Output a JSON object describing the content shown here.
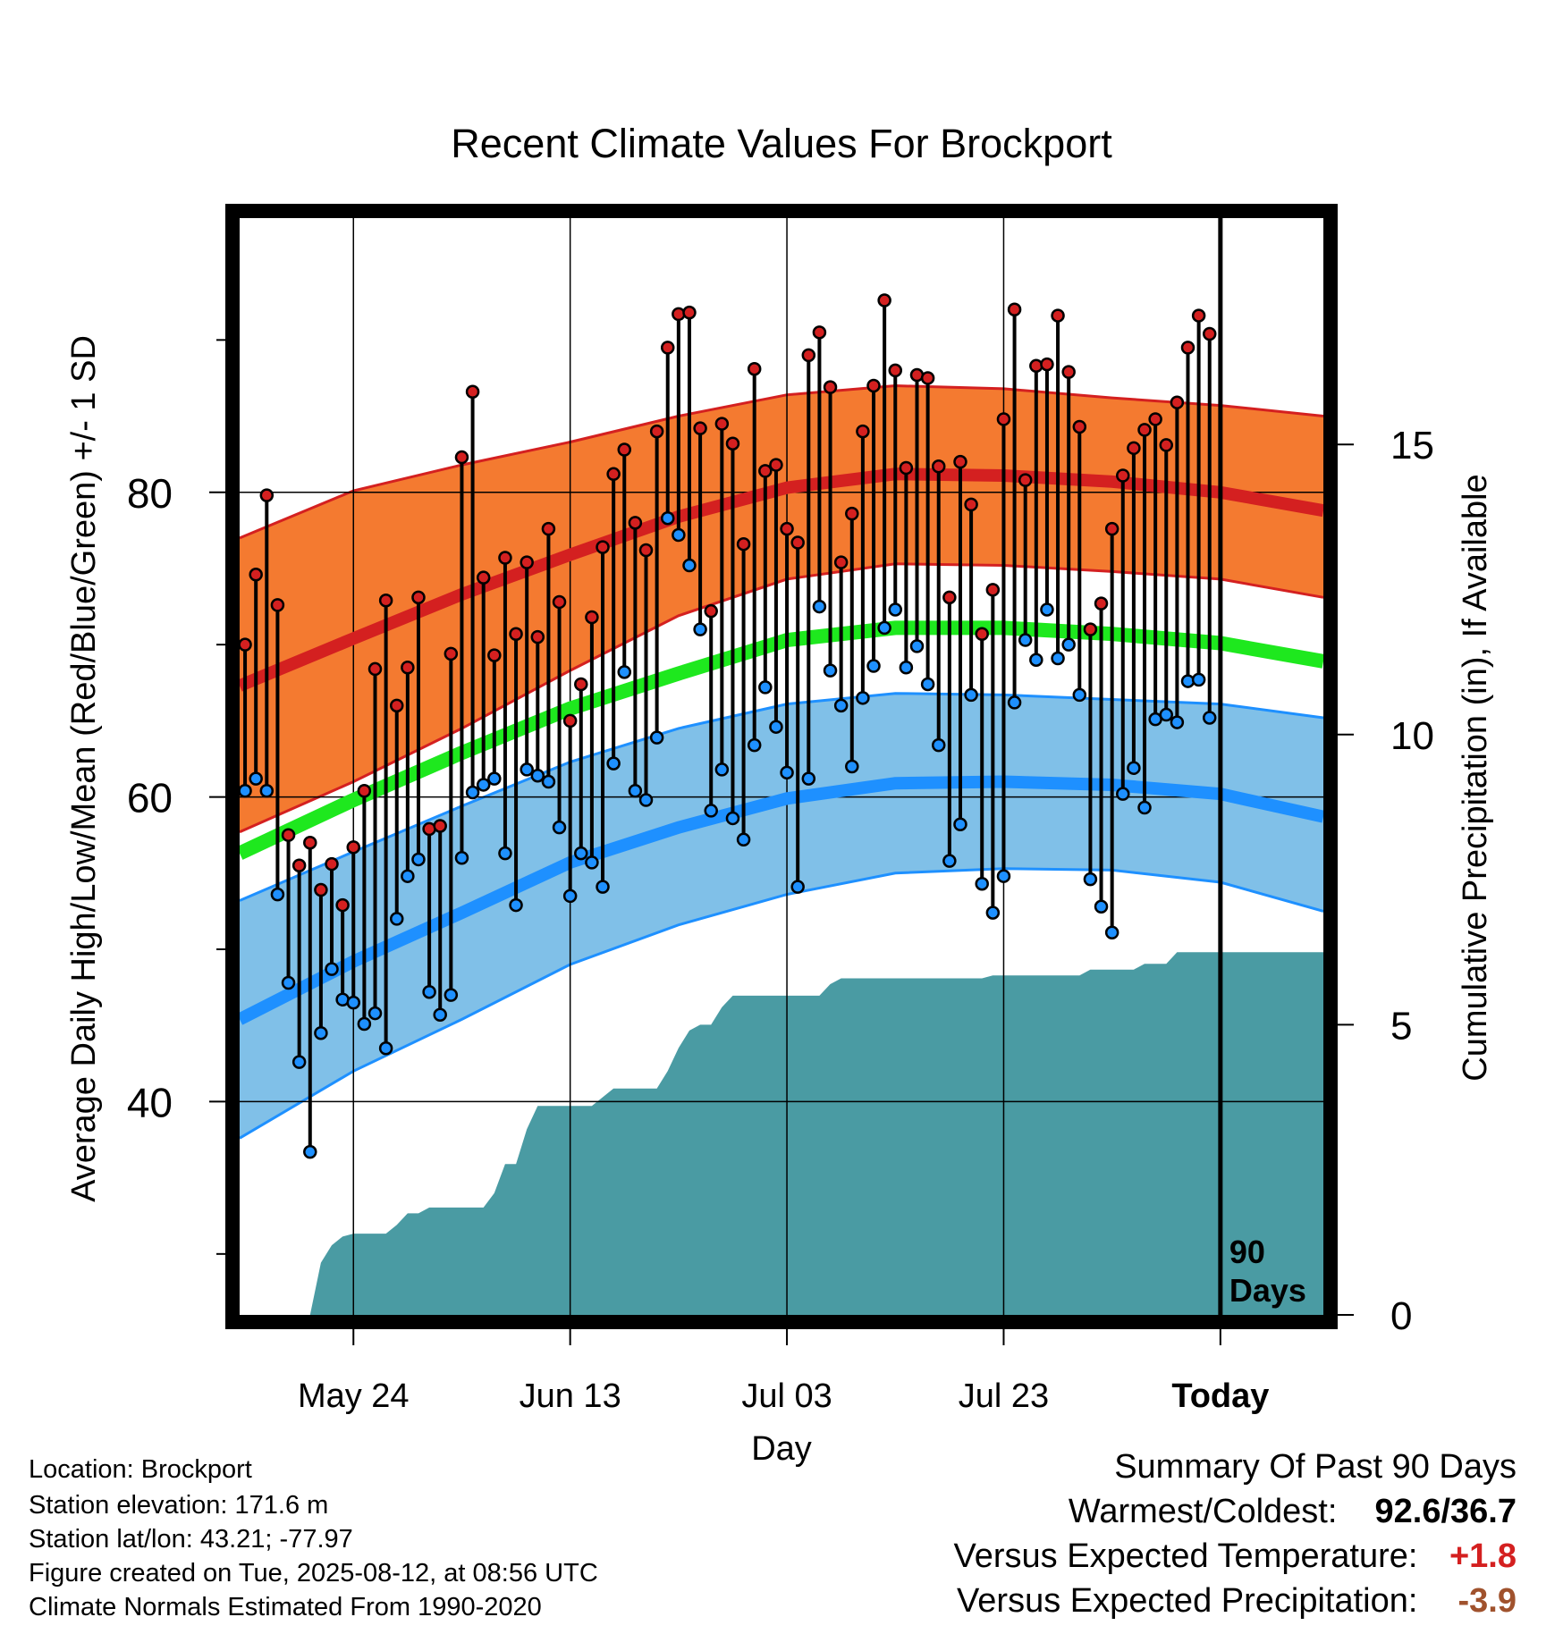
{
  "chart_data": {
    "type": "line",
    "title": "Recent Climate Values For Brockport",
    "xlabel": "Day",
    "ylabel": "Average Daily High/Low/Mean (Red/Blue/Green) +/- 1 SD",
    "y2label": "Cumulative Precipitation (in), If Available",
    "ylim": [
      26,
      98
    ],
    "y2lim": [
      0,
      18.9
    ],
    "yticks": [
      40,
      60,
      80
    ],
    "y2ticks": [
      0,
      5,
      10,
      15
    ],
    "xlim": [
      -10.5,
      89.5
    ],
    "xticks": [
      {
        "day": 0,
        "label": "May 24"
      },
      {
        "day": 20,
        "label": "Jun 13"
      },
      {
        "day": 40,
        "label": "Jul 03"
      },
      {
        "day": 60,
        "label": "Jul 23"
      },
      {
        "day": 80,
        "label": "Today"
      }
    ],
    "today_marker": {
      "day": 80,
      "label_line1": "90",
      "label_line2": "Days"
    },
    "grid": true,
    "normals": {
      "days": [
        -10.5,
        0,
        10,
        20,
        30,
        40,
        50,
        60,
        70,
        80,
        89.5
      ],
      "high_mean": [
        67.3,
        70.4,
        73.3,
        75.9,
        78.4,
        80.3,
        81.2,
        81.1,
        80.7,
        80.0,
        78.8
      ],
      "high_upper": [
        77.0,
        80.1,
        81.8,
        83.3,
        85.0,
        86.4,
        87.0,
        86.8,
        86.2,
        85.7,
        85.0
      ],
      "high_lower": [
        57.7,
        61.0,
        64.5,
        68.3,
        71.9,
        74.3,
        75.3,
        75.2,
        74.8,
        74.3,
        73.1
      ],
      "avg_mean": [
        56.3,
        59.8,
        62.9,
        65.8,
        68.1,
        70.3,
        71.1,
        71.1,
        70.7,
        70.1,
        68.9
      ],
      "low_mean": [
        45.4,
        49.2,
        52.4,
        55.7,
        58.0,
        59.9,
        60.9,
        61.0,
        60.8,
        60.2,
        58.7
      ],
      "low_upper": [
        53.2,
        56.4,
        59.4,
        62.3,
        64.5,
        66.1,
        66.8,
        66.7,
        66.4,
        66.1,
        65.2
      ],
      "low_lower": [
        37.6,
        42.0,
        45.4,
        49.0,
        51.6,
        53.6,
        55.0,
        55.3,
        55.2,
        54.4,
        52.5
      ]
    },
    "series": [
      {
        "name": "High",
        "start_day": -10,
        "values": [
          70.0,
          74.6,
          79.8,
          72.6,
          57.5,
          55.5,
          57.0,
          53.9,
          55.6,
          52.9,
          56.7,
          60.4,
          68.4,
          72.9,
          66.0,
          68.5,
          73.1,
          57.9,
          58.1,
          69.4,
          82.3,
          86.6,
          74.4,
          69.3,
          75.7,
          70.7,
          75.4,
          70.5,
          77.6,
          72.8,
          65.0,
          67.4,
          71.8,
          76.4,
          81.2,
          82.8,
          78.0,
          76.2,
          84.0,
          89.5,
          91.7,
          91.8,
          84.2,
          72.2,
          84.5,
          83.2,
          76.6,
          88.1,
          81.4,
          81.8,
          77.6,
          76.7,
          89.0,
          90.5,
          86.9,
          75.4,
          78.6,
          84.0,
          87.0,
          92.6,
          88.0,
          81.6,
          87.7,
          87.5,
          81.7,
          73.1,
          82.0,
          79.2,
          70.7,
          73.6,
          84.8,
          92.0,
          80.8,
          88.3,
          88.4,
          91.6,
          87.9,
          84.3,
          71.0,
          72.7,
          77.6,
          81.1,
          82.9,
          84.1,
          84.8,
          83.1,
          85.9,
          89.5,
          91.6,
          90.4
        ]
      },
      {
        "name": "Low",
        "start_day": -10,
        "values": [
          60.4,
          61.2,
          60.4,
          53.6,
          47.8,
          42.6,
          36.7,
          44.5,
          48.7,
          46.7,
          46.5,
          45.1,
          45.8,
          43.5,
          52.0,
          54.8,
          55.9,
          47.2,
          45.7,
          47.0,
          56.0,
          60.3,
          60.8,
          61.2,
          56.3,
          52.9,
          61.8,
          61.4,
          61.0,
          58.0,
          53.5,
          56.3,
          55.7,
          54.1,
          62.2,
          68.2,
          60.4,
          59.8,
          63.9,
          78.3,
          77.2,
          75.2,
          71.0,
          59.1,
          61.8,
          58.6,
          57.2,
          63.4,
          67.2,
          64.6,
          61.6,
          54.1,
          61.2,
          72.5,
          68.3,
          66.0,
          62.0,
          66.5,
          68.6,
          71.1,
          72.3,
          68.5,
          69.9,
          67.4,
          63.4,
          55.8,
          58.2,
          66.7,
          54.3,
          52.4,
          54.8,
          66.2,
          70.3,
          69.0,
          72.3,
          69.1,
          70.0,
          66.7,
          54.6,
          52.8,
          51.1,
          60.2,
          61.9,
          59.3,
          65.1,
          65.4,
          64.9,
          67.6,
          67.7,
          65.2
        ]
      },
      {
        "name": "Cumulative Precipitation",
        "points": [
          [
            -10.5,
            0
          ],
          [
            -4,
            0
          ],
          [
            -3,
            0.9
          ],
          [
            -2,
            1.2
          ],
          [
            -1,
            1.35
          ],
          [
            0,
            1.4
          ],
          [
            3,
            1.4
          ],
          [
            4,
            1.55
          ],
          [
            5,
            1.75
          ],
          [
            6,
            1.75
          ],
          [
            7,
            1.85
          ],
          [
            12,
            1.85
          ],
          [
            13,
            2.1
          ],
          [
            14,
            2.6
          ],
          [
            15,
            2.6
          ],
          [
            16,
            3.2
          ],
          [
            17,
            3.6
          ],
          [
            22,
            3.6
          ],
          [
            23,
            3.75
          ],
          [
            24,
            3.9
          ],
          [
            28,
            3.9
          ],
          [
            29,
            4.2
          ],
          [
            30,
            4.6
          ],
          [
            31,
            4.9
          ],
          [
            32,
            5.0
          ],
          [
            33,
            5.0
          ],
          [
            34,
            5.3
          ],
          [
            35,
            5.5
          ],
          [
            43,
            5.5
          ],
          [
            44,
            5.7
          ],
          [
            45,
            5.8
          ],
          [
            58,
            5.8
          ],
          [
            59,
            5.85
          ],
          [
            67,
            5.85
          ],
          [
            68,
            5.95
          ],
          [
            72,
            5.95
          ],
          [
            73,
            6.05
          ],
          [
            75,
            6.05
          ],
          [
            76,
            6.25
          ],
          [
            89.5,
            6.25
          ]
        ]
      }
    ]
  },
  "info": {
    "location": "Location: Brockport",
    "elevation": "Station elevation: 171.6 m",
    "latlon": "Station lat/lon: 43.21; -77.97",
    "created": "Figure created on Tue, 2025-08-12, at 08:56 UTC",
    "normals": "Climate Normals Estimated From 1990-2020"
  },
  "summary": {
    "heading": "Summary Of Past 90 Days",
    "warm_cold_label": "Warmest/Coldest:",
    "warm_cold_value": "92.6/36.7",
    "temp_label": "Versus Expected Temperature:",
    "temp_value": "+1.8",
    "precip_label": "Versus Expected Precipitation:",
    "precip_value": "-3.9"
  },
  "colors": {
    "high_band": "#f47a30",
    "high_line": "#d42020",
    "mean_line": "#1ee81e",
    "low_band": "#80c0e8",
    "low_line": "#1e90ff",
    "precip_fill": "#4a9ba3",
    "high_marker": "#d42020",
    "low_marker": "#1e90ff",
    "temp_diff": "#d42020",
    "precip_diff": "#a0522d"
  }
}
